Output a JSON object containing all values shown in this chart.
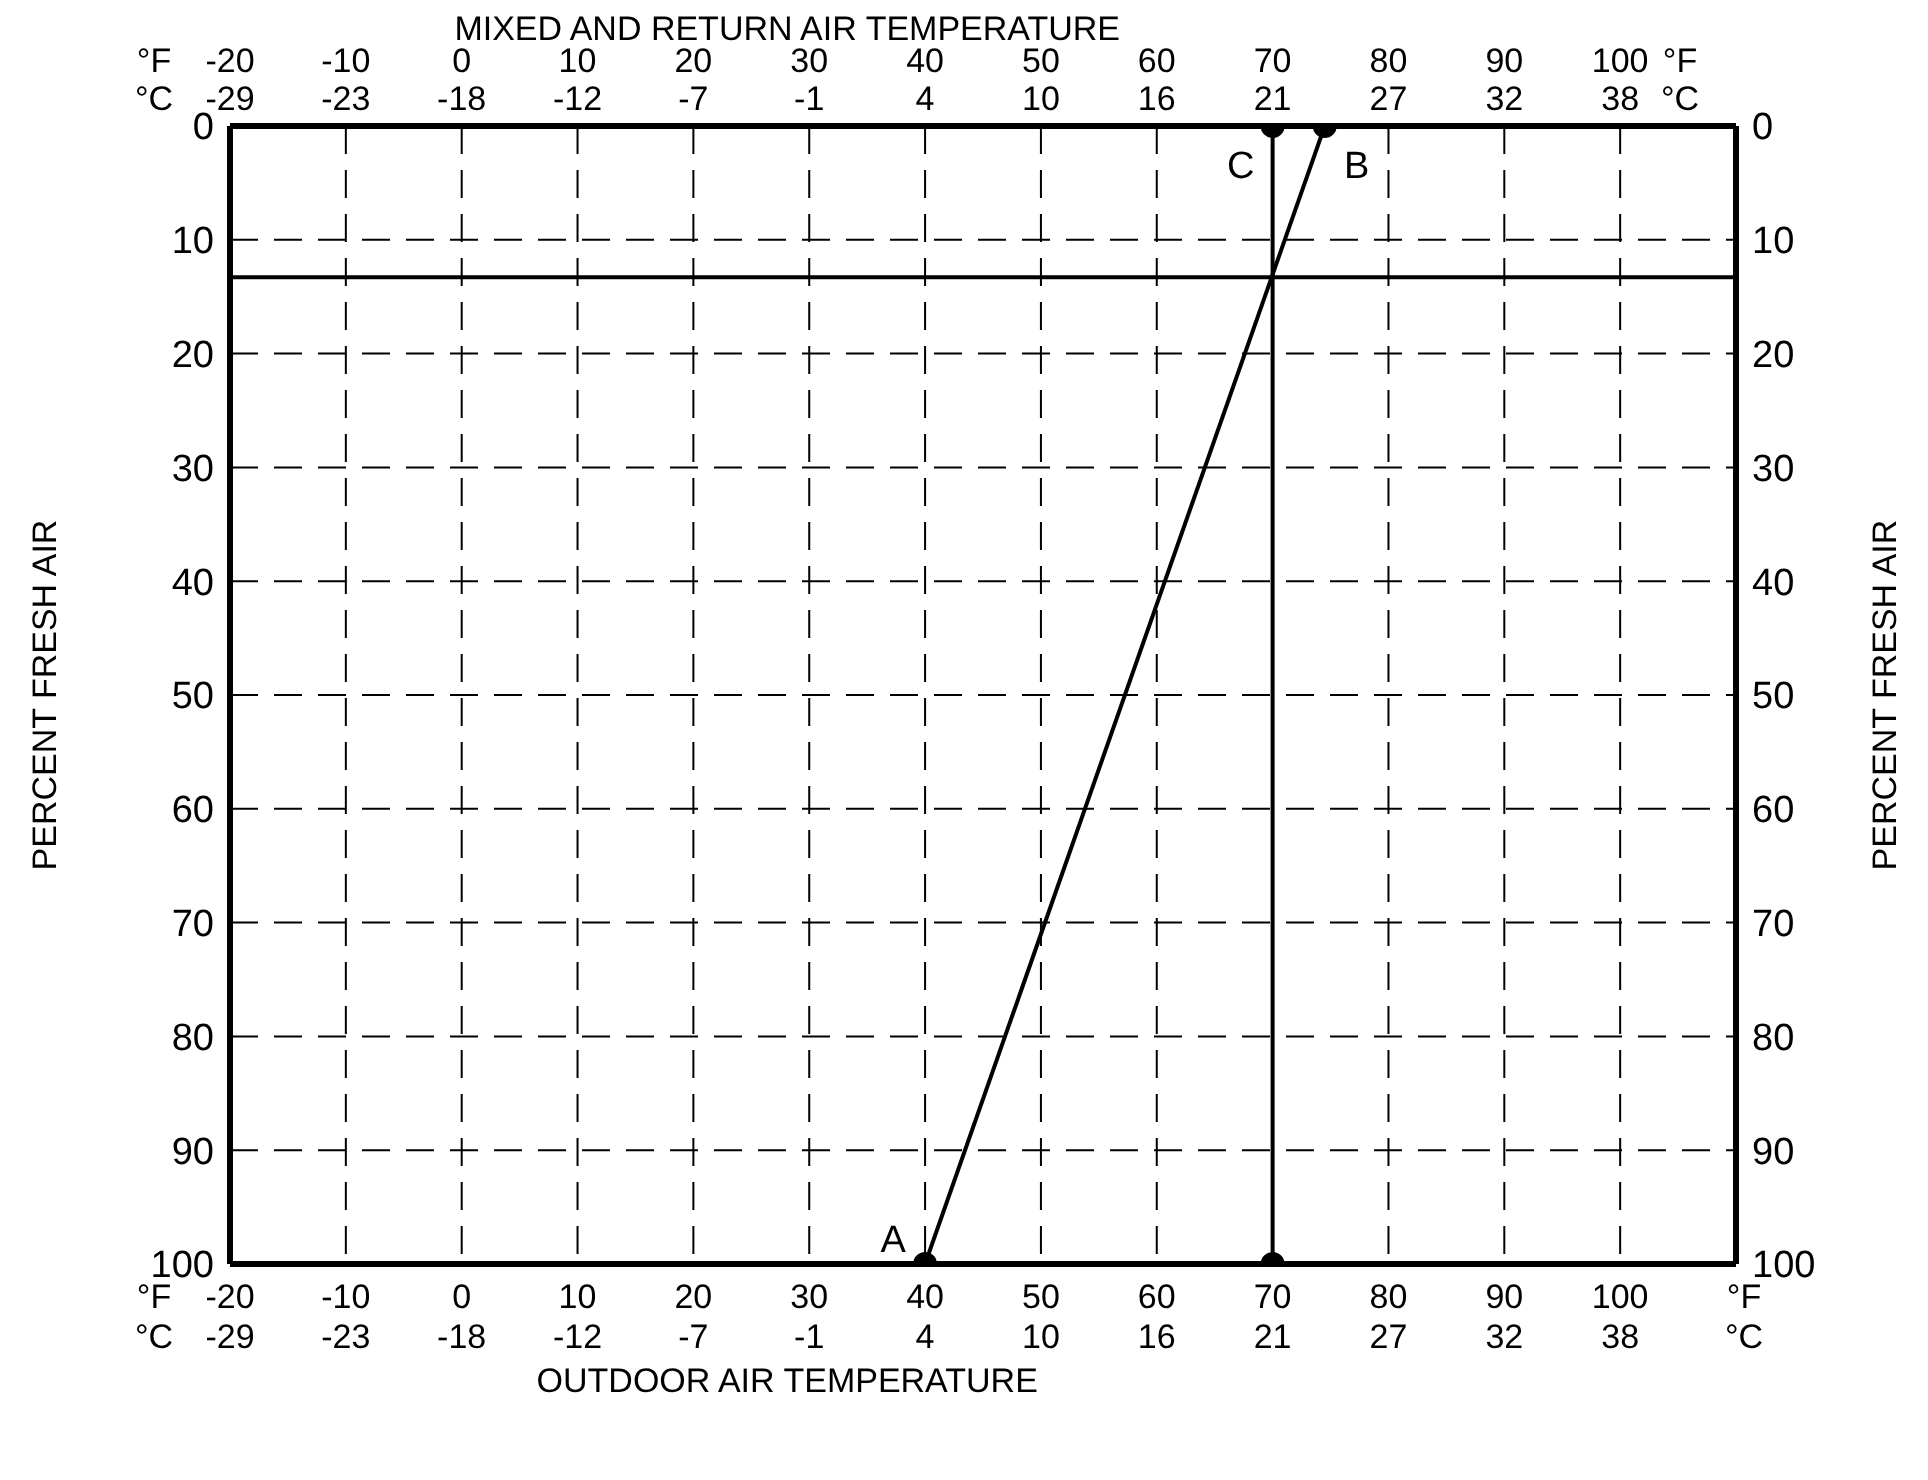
{
  "chart_data": {
    "type": "line",
    "x2label": "MIXED AND RETURN AIR TEMPERATURE",
    "xlabel": "OUTDOOR AIR TEMPERATURE",
    "ylabel": "PERCENT FRESH AIR",
    "y2label": "PERCENT FRESH AIR",
    "xlim": [
      -20,
      110
    ],
    "xticks": [
      -20,
      -10,
      0,
      10,
      20,
      30,
      40,
      50,
      60,
      70,
      80,
      90,
      100
    ],
    "x2lim": [
      -20,
      110
    ],
    "x2ticks": [
      -20,
      -10,
      0,
      10,
      20,
      30,
      40,
      50,
      60,
      70,
      80,
      90,
      100
    ],
    "ylim": [
      100,
      0
    ],
    "yticks": [
      0,
      10,
      20,
      30,
      40,
      50,
      60,
      70,
      80,
      90,
      100
    ],
    "y2lim": [
      100,
      0
    ],
    "y2ticks": [
      0,
      10,
      20,
      30,
      40,
      50,
      60,
      70,
      80,
      90,
      100
    ],
    "series": [
      {
        "type": "line",
        "color": "#000000",
        "x": [
          40,
          74.5
        ],
        "values": [
          100,
          0
        ]
      },
      {
        "type": "line",
        "color": "#000000",
        "x": [
          70,
          70
        ],
        "values": [
          0,
          100
        ]
      }
    ],
    "marker": "circle",
    "line_style": "solid",
    "grid": true,
    "ref_lines": [
      {
        "axis": "y",
        "value": 13.3,
        "color": "#000000"
      }
    ],
    "annotations": [
      "°F",
      "°C",
      "-29",
      "-23",
      "-18",
      "-12",
      "-7",
      "-1",
      "4",
      "10",
      "16",
      "21",
      "27",
      "32",
      "38",
      {
        "text": "A",
        "x": 40,
        "y": 100
      },
      {
        "text": "B",
        "x": 74.5,
        "y": 0
      },
      {
        "text": "C",
        "x": 70,
        "y": 0
      }
    ]
  }
}
